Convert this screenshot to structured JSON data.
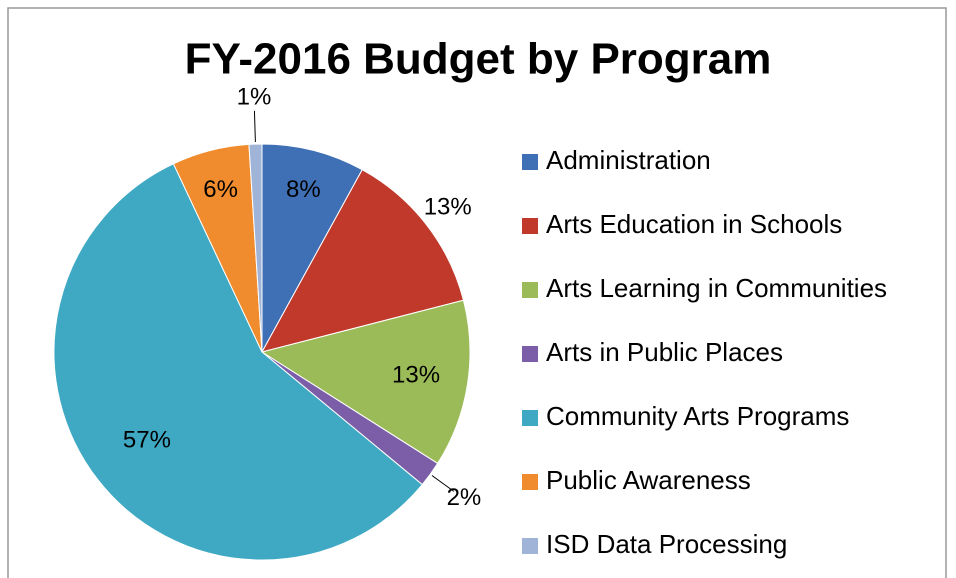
{
  "chart_data": {
    "type": "pie",
    "title": "FY-2016 Budget by Program",
    "categories": [
      "Administration",
      "Arts Education in Schools",
      "Arts Learning in Communities",
      "Arts in Public Places",
      "Community Arts Programs",
      "Public Awareness",
      "ISD Data Processing"
    ],
    "values": [
      8,
      13,
      13,
      2,
      57,
      6,
      1
    ],
    "value_labels": [
      "8%",
      "13%",
      "13%",
      "2%",
      "57%",
      "6%",
      "1%"
    ],
    "colors": [
      "#3f6fb5",
      "#c0392b",
      "#9bbb59",
      "#7b5ea7",
      "#3fa9c4",
      "#f08c2e",
      "#9fb4d6"
    ],
    "legend": "right"
  }
}
